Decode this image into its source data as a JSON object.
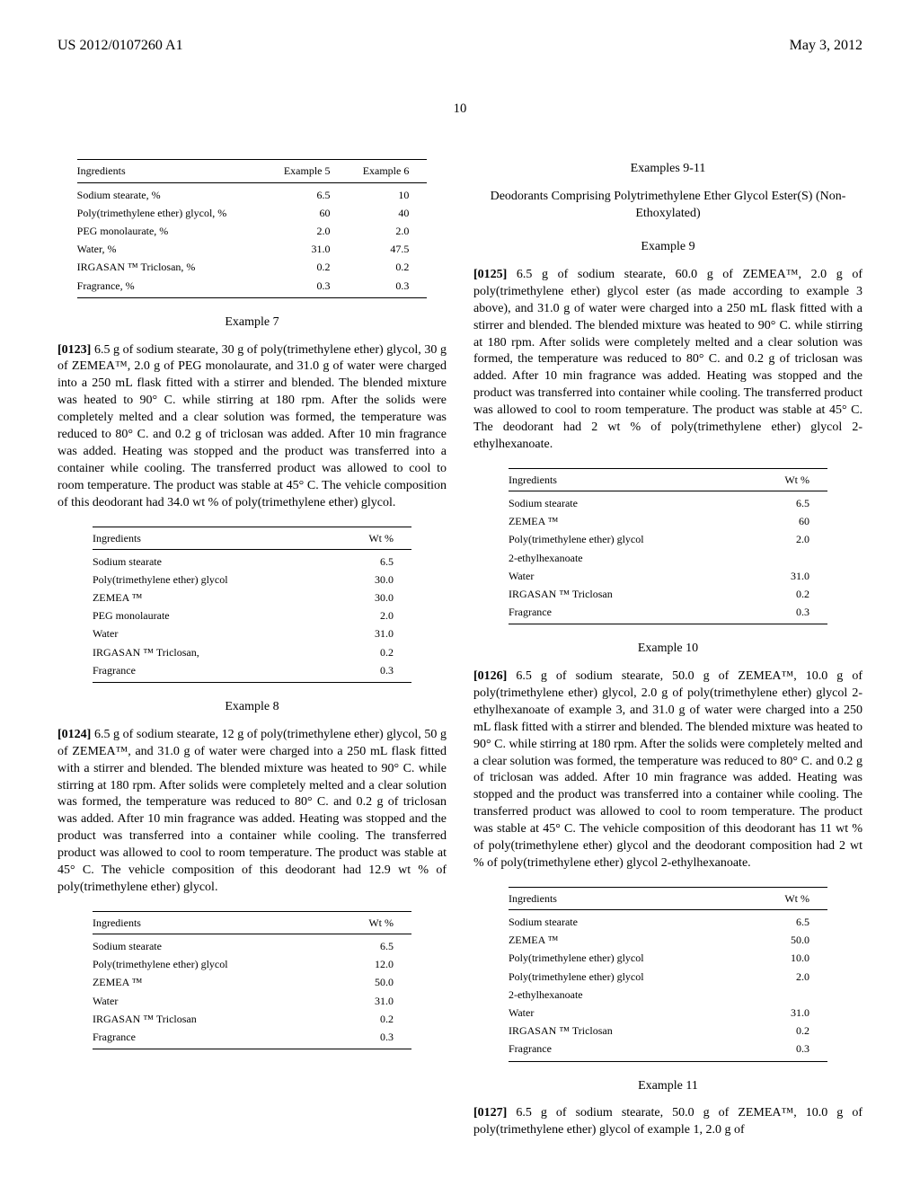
{
  "header": {
    "doc_number": "US 2012/0107260 A1",
    "date": "May 3, 2012",
    "page_number": "10"
  },
  "left_col": {
    "table56": {
      "headers": [
        "Ingredients",
        "Example 5",
        "Example 6"
      ],
      "rows": [
        [
          "Sodium stearate, %",
          "6.5",
          "10"
        ],
        [
          "Poly(trimethylene ether) glycol, %",
          "60",
          "40"
        ],
        [
          "PEG monolaurate, %",
          "2.0",
          "2.0"
        ],
        [
          "Water, %",
          "31.0",
          "47.5"
        ],
        [
          "IRGASAN ™ Triclosan, %",
          "0.2",
          "0.2"
        ],
        [
          "Fragrance, %",
          "0.3",
          "0.3"
        ]
      ]
    },
    "ex7": {
      "title": "Example 7",
      "para_num": "[0123]",
      "text": "  6.5 g of sodium stearate, 30 g of poly(trimethylene ether) glycol, 30 g of ZEMEA™, 2.0 g of PEG monolaurate, and 31.0 g of water were charged into a 250 mL flask fitted with a stirrer and blended. The blended mixture was heated to 90° C. while stirring at 180 rpm. After the solids were completely melted and a clear solution was formed, the temperature was reduced to 80° C. and 0.2 g of triclosan was added. After 10 min fragrance was added. Heating was stopped and the product was transferred into a container while cooling. The transferred product was allowed to cool to room temperature. The product was stable at 45° C. The vehicle composition of this deodorant had 34.0 wt % of poly(trimethylene ether) glycol.",
      "table": {
        "headers": [
          "Ingredients",
          "Wt %"
        ],
        "rows": [
          [
            "Sodium stearate",
            "6.5"
          ],
          [
            "Poly(trimethylene ether) glycol",
            "30.0"
          ],
          [
            "ZEMEA ™",
            "30.0"
          ],
          [
            "PEG monolaurate",
            "2.0"
          ],
          [
            "Water",
            "31.0"
          ],
          [
            "IRGASAN ™ Triclosan,",
            "0.2"
          ],
          [
            "Fragrance",
            "0.3"
          ]
        ]
      }
    },
    "ex8": {
      "title": "Example 8",
      "para_num": "[0124]",
      "text": "  6.5 g of sodium stearate, 12 g of poly(trimethylene ether) glycol, 50 g of ZEMEA™, and 31.0 g of water were charged into a 250 mL flask fitted with a stirrer and blended. The blended mixture was heated to 90° C. while stirring at 180 rpm. After solids were completely melted and a clear solution was formed, the temperature was reduced to 80° C. and 0.2 g of triclosan was added. After 10 min fragrance was added. Heating was stopped and the product was transferred into a container while cooling. The transferred product was allowed to cool to room temperature. The product was stable at 45° C. The vehicle composition of this deodorant had 12.9 wt % of poly(trimethylene ether) glycol.",
      "table": {
        "headers": [
          "Ingredients",
          "Wt %"
        ],
        "rows": [
          [
            "Sodium stearate",
            "6.5"
          ],
          [
            "Poly(trimethylene ether) glycol",
            "12.0"
          ],
          [
            "ZEMEA ™",
            "50.0"
          ],
          [
            "Water",
            "31.0"
          ],
          [
            "IRGASAN ™ Triclosan",
            "0.2"
          ],
          [
            "Fragrance",
            "0.3"
          ]
        ]
      }
    }
  },
  "right_col": {
    "section_title": "Examples 9-11",
    "section_subtitle": "Deodorants Comprising Polytrimethylene Ether Glycol Ester(S) (Non-Ethoxylated)",
    "ex9": {
      "title": "Example 9",
      "para_num": "[0125]",
      "text": "  6.5 g of sodium stearate, 60.0 g of ZEMEA™, 2.0 g of poly(trimethylene ether) glycol ester (as made according to example 3 above), and 31.0 g of water were charged into a 250 mL flask fitted with a stirrer and blended. The blended mixture was heated to 90° C. while stirring at 180 rpm. After solids were completely melted and a clear solution was formed, the temperature was reduced to 80° C. and 0.2 g of triclosan was added. After 10 min fragrance was added. Heating was stopped and the product was transferred into container while cooling. The transferred product was allowed to cool to room temperature. The product was stable at 45° C. The deodorant had 2 wt % of poly(trimethylene ether) glycol 2-ethylhexanoate.",
      "table": {
        "headers": [
          "Ingredients",
          "Wt %"
        ],
        "rows": [
          [
            "Sodium stearate",
            "6.5"
          ],
          [
            "ZEMEA ™",
            "60"
          ],
          [
            "Poly(trimethylene ether) glycol",
            "2.0"
          ],
          [
            "2-ethylhexanoate",
            ""
          ],
          [
            "Water",
            "31.0"
          ],
          [
            "IRGASAN ™ Triclosan",
            "0.2"
          ],
          [
            "Fragrance",
            "0.3"
          ]
        ]
      }
    },
    "ex10": {
      "title": "Example 10",
      "para_num": "[0126]",
      "text": "  6.5 g of sodium stearate, 50.0 g of ZEMEA™, 10.0 g of poly(trimethylene ether) glycol, 2.0 g of poly(trimethylene ether) glycol 2-ethylhexanoate of example 3, and 31.0 g of water were charged into a 250 mL flask fitted with a stirrer and blended. The blended mixture was heated to 90° C. while stirring at 180 rpm. After the solids were completely melted and a clear solution was formed, the temperature was reduced to 80° C. and 0.2 g of triclosan was added. After 10 min fragrance was added. Heating was stopped and the product was transferred into a container while cooling. The transferred product was allowed to cool to room temperature. The product was stable at 45° C. The vehicle composition of this deodorant has 11 wt % of poly(trimethylene ether) glycol and the deodorant composition had 2 wt % of poly(trimethylene ether) glycol 2-ethylhexanoate.",
      "table": {
        "headers": [
          "Ingredients",
          "Wt %"
        ],
        "rows": [
          [
            "Sodium stearate",
            "6.5"
          ],
          [
            "ZEMEA ™",
            "50.0"
          ],
          [
            "Poly(trimethylene ether) glycol",
            "10.0"
          ],
          [
            "Poly(trimethylene ether) glycol",
            "2.0"
          ],
          [
            "2-ethylhexanoate",
            ""
          ],
          [
            "Water",
            "31.0"
          ],
          [
            "IRGASAN ™ Triclosan",
            "0.2"
          ],
          [
            "Fragrance",
            "0.3"
          ]
        ]
      }
    },
    "ex11": {
      "title": "Example 11",
      "para_num": "[0127]",
      "text": "  6.5 g of sodium stearate, 50.0 g of ZEMEA™, 10.0 g of poly(trimethylene ether) glycol of example 1, 2.0 g of"
    }
  }
}
